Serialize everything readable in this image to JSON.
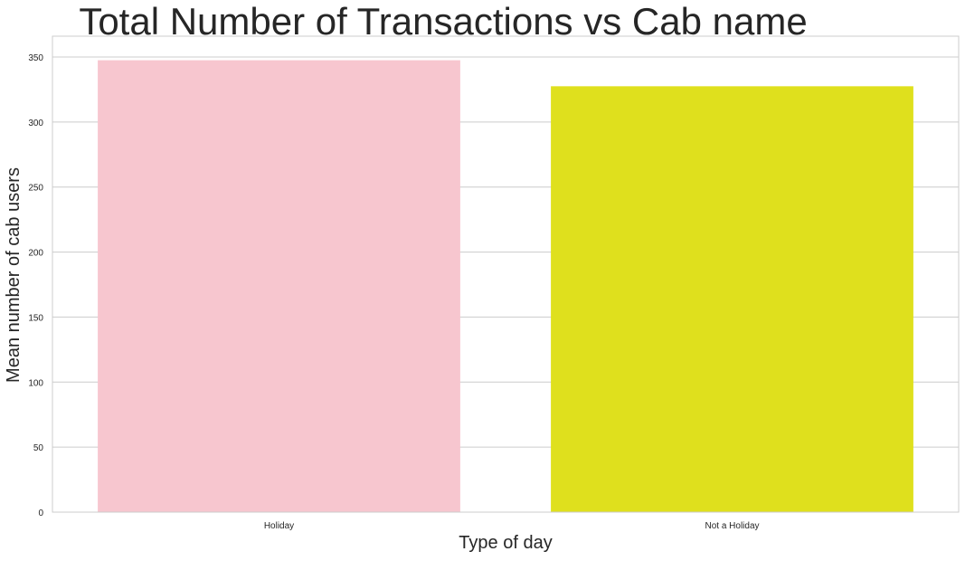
{
  "chart_data": {
    "type": "bar",
    "title": "Total Number of Transactions vs Cab name",
    "xlabel": "Type of day",
    "ylabel": "Mean number of cab users",
    "categories": [
      "Holiday",
      "Not a Holiday"
    ],
    "values": [
      347.5,
      327.5
    ],
    "bar_colors": [
      "#f7c6cf",
      "#dfe01d"
    ],
    "ylim": [
      0,
      366
    ],
    "yticks": [
      0,
      50,
      100,
      150,
      200,
      250,
      300,
      350
    ],
    "grid": "y",
    "style": {
      "grid_color": "#cccccc",
      "text_color": "#262626",
      "frame_color": "#cccccc"
    }
  }
}
